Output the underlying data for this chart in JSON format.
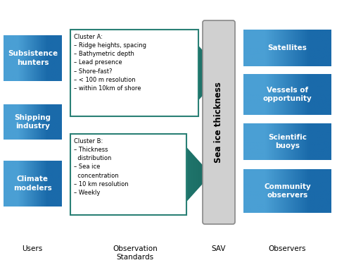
{
  "fig_width": 4.79,
  "fig_height": 3.76,
  "dpi": 100,
  "bg_color": "#ffffff",
  "blue_dark": "#2a7fc0",
  "blue_mid": "#4a9fd4",
  "teal_dark": "#2a8075",
  "teal_mid": "#4aada0",
  "teal_light": "#a8d8d0",
  "light_blue": "#cce4f2",
  "sav_color": "#d0d0d0",
  "sav_border": "#888888",
  "users": [
    "Subsistence\nhunters",
    "Shipping\nindustry",
    "Climate\nmodelers"
  ],
  "observers": [
    "Satellites",
    "Vessels of\nopportunity",
    "Scientific\nbuoys",
    "Community\nobservers"
  ],
  "cluster_a_title": "Cluster A:",
  "cluster_a_items": [
    "– Ridge heights, spacing",
    "– Bathymetric depth",
    "– Lead presence",
    "– Shore-fast?",
    "– < 100 m resolution",
    "– within 10km of shore"
  ],
  "cluster_b_title": "Cluster B:",
  "cluster_b_items": [
    "– Thickness\n  distribution",
    "– Sea ice\n  concentration",
    "– 10 km resolution",
    "– Weekly"
  ],
  "sav_label": "Sea ice thickness",
  "label_users": "Users",
  "label_obs_std": "Observation\nStandards",
  "label_sav": "SAV",
  "label_observers": "Observers"
}
